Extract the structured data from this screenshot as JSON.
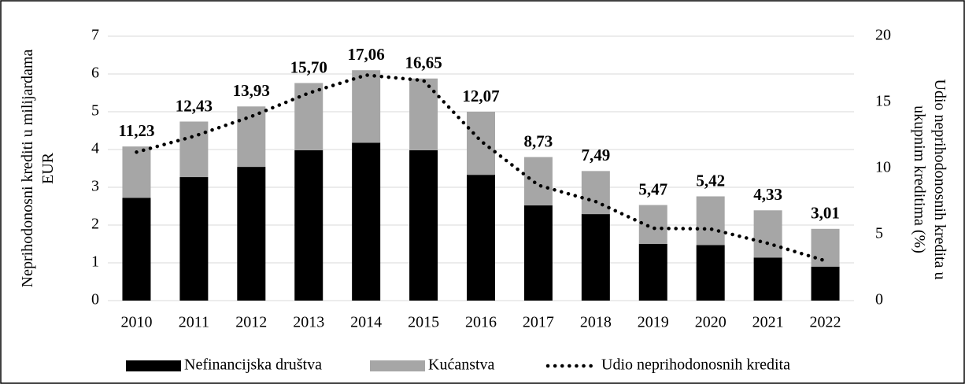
{
  "chart_data": {
    "type": "bar",
    "categories": [
      "2010",
      "2011",
      "2012",
      "2013",
      "2014",
      "2015",
      "2016",
      "2017",
      "2018",
      "2019",
      "2020",
      "2021",
      "2022"
    ],
    "series": [
      {
        "name": "Nefinancijska društva",
        "color": "#000000",
        "values": [
          2.72,
          3.27,
          3.54,
          3.98,
          4.18,
          3.98,
          3.33,
          2.52,
          2.29,
          1.5,
          1.47,
          1.14,
          0.9
        ]
      },
      {
        "name": "Kućanstva",
        "color": "#a6a6a6",
        "values": [
          1.36,
          1.47,
          1.6,
          1.78,
          1.92,
          1.9,
          1.67,
          1.28,
          1.14,
          1.03,
          1.29,
          1.25,
          1.0
        ]
      },
      {
        "name": "Udio neprihodonosnih kredita",
        "type": "line",
        "axis": "y2",
        "color": "#000000",
        "values": [
          11.23,
          12.43,
          13.93,
          15.7,
          17.06,
          16.65,
          12.07,
          8.73,
          7.49,
          5.47,
          5.42,
          4.33,
          3.01
        ],
        "value_labels": [
          "11,23",
          "12,43",
          "13,93",
          "15,70",
          "17,06",
          "16,65",
          "12,07",
          "8,73",
          "7,49",
          "5,47",
          "5,42",
          "4,33",
          "3,01"
        ]
      }
    ],
    "ylabel": "Neprihodonosni krediti u milijardama EUR",
    "y2label": "Udio neprihodonosnih kredita u ukupnim kreditima (%)",
    "ylim": [
      0,
      7
    ],
    "yticks": [
      0,
      1,
      2,
      3,
      4,
      5,
      6,
      7
    ],
    "y2lim": [
      0,
      20
    ],
    "y2ticks": [
      0,
      5,
      10,
      15,
      20
    ],
    "grid": true,
    "stacked": true,
    "legend": "bottom"
  }
}
